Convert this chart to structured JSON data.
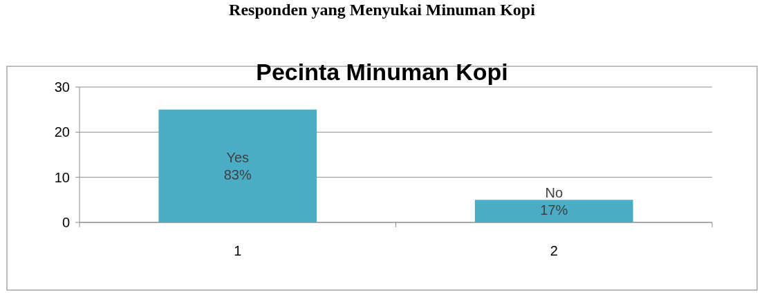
{
  "chart_data": {
    "type": "bar",
    "title": "Pecinta Minuman Kopi",
    "annotations": [
      "Responden yang Menyukai Minuman Kopi"
    ],
    "categories": [
      "1",
      "2"
    ],
    "values": [
      25,
      5
    ],
    "color": "#4bacc6",
    "value_labels": [
      "Yes\n83%",
      "No\n17%"
    ],
    "ylim": [
      0,
      30
    ],
    "yticks": [
      0,
      10,
      20,
      30
    ],
    "grid": "y"
  }
}
